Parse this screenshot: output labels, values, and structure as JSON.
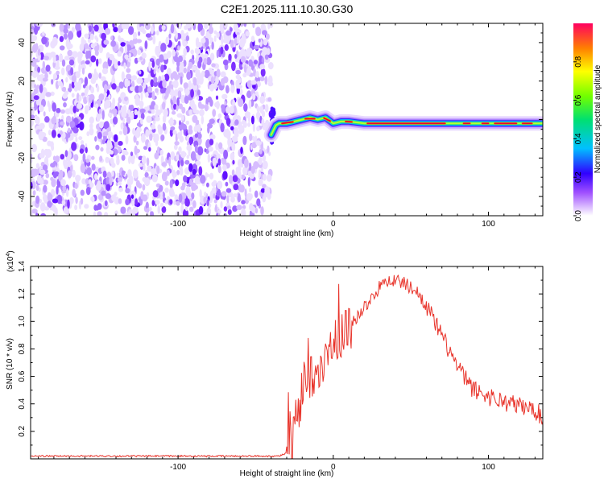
{
  "figure": {
    "title": "C2E1.2025.111.10.30.G30"
  },
  "chart_data": [
    {
      "type": "heatmap",
      "xlabel": "Height of straight line (km)",
      "ylabel": "Frequency (Hz)",
      "xlim": [
        -195,
        135
      ],
      "ylim": [
        -50,
        50
      ],
      "xticks": [
        -100,
        0,
        100
      ],
      "yticks": [
        -40,
        -20,
        0,
        20,
        40
      ],
      "noise_region": {
        "x": [
          -195,
          -40
        ],
        "y": [
          -50,
          50
        ]
      },
      "signal": [
        {
          "x": -40,
          "y": -8
        },
        {
          "x": -37,
          "y": -3
        },
        {
          "x": -35,
          "y": -2
        },
        {
          "x": -30,
          "y": -2
        },
        {
          "x": -25,
          "y": -1
        },
        {
          "x": -20,
          "y": 0
        },
        {
          "x": -15,
          "y": 1
        },
        {
          "x": -10,
          "y": 0
        },
        {
          "x": -5,
          "y": 1
        },
        {
          "x": 0,
          "y": -2
        },
        {
          "x": 5,
          "y": -1
        },
        {
          "x": 10,
          "y": -1
        },
        {
          "x": 20,
          "y": -2
        },
        {
          "x": 40,
          "y": -2
        },
        {
          "x": 60,
          "y": -2
        },
        {
          "x": 80,
          "y": -2
        },
        {
          "x": 100,
          "y": -2
        },
        {
          "x": 120,
          "y": -2
        },
        {
          "x": 135,
          "y": -2
        }
      ],
      "colorbar": {
        "label": "Normalized spectral amplitude",
        "ticks": [
          "0.0",
          "0.2",
          "0.4",
          "0.6",
          "0.8"
        ],
        "range": [
          0,
          1
        ]
      }
    },
    {
      "type": "line",
      "xlabel": "Height of straight line (km)",
      "ylabel": "SNR (10 * v/v)",
      "y_multiplier": "(x10",
      "y_multiplier_exp": "4",
      "y_multiplier_close": ")",
      "xlim": [
        -195,
        135
      ],
      "ylim": [
        0,
        1.4
      ],
      "xticks": [
        -100,
        0,
        100
      ],
      "yticks": [
        "0.2",
        "0.4",
        "0.6",
        "0.8",
        "1.0",
        "1.2",
        "1.4"
      ],
      "series_color": "#e8332a",
      "envelope": [
        {
          "x": -195,
          "y": 0.02
        },
        {
          "x": -35,
          "y": 0.02
        },
        {
          "x": -28,
          "y": 0.05
        },
        {
          "x": -24,
          "y": 0.3
        },
        {
          "x": -20,
          "y": 0.5
        },
        {
          "x": -15,
          "y": 0.62
        },
        {
          "x": -10,
          "y": 0.7
        },
        {
          "x": -5,
          "y": 0.75
        },
        {
          "x": 0,
          "y": 0.85
        },
        {
          "x": 5,
          "y": 0.9
        },
        {
          "x": 10,
          "y": 0.97
        },
        {
          "x": 15,
          "y": 1.03
        },
        {
          "x": 20,
          "y": 1.1
        },
        {
          "x": 25,
          "y": 1.18
        },
        {
          "x": 30,
          "y": 1.25
        },
        {
          "x": 35,
          "y": 1.3
        },
        {
          "x": 40,
          "y": 1.3
        },
        {
          "x": 45,
          "y": 1.28
        },
        {
          "x": 50,
          "y": 1.25
        },
        {
          "x": 55,
          "y": 1.2
        },
        {
          "x": 60,
          "y": 1.12
        },
        {
          "x": 65,
          "y": 1.02
        },
        {
          "x": 70,
          "y": 0.9
        },
        {
          "x": 75,
          "y": 0.8
        },
        {
          "x": 80,
          "y": 0.68
        },
        {
          "x": 85,
          "y": 0.6
        },
        {
          "x": 90,
          "y": 0.52
        },
        {
          "x": 100,
          "y": 0.47
        },
        {
          "x": 110,
          "y": 0.43
        },
        {
          "x": 120,
          "y": 0.4
        },
        {
          "x": 130,
          "y": 0.37
        },
        {
          "x": 135,
          "y": 0.31
        }
      ]
    }
  ]
}
